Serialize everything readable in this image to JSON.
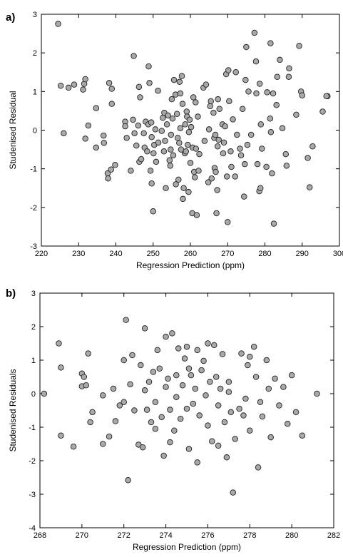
{
  "chart_data": [
    {
      "type": "scatter",
      "panel_label": "a)",
      "xlabel": "Regression Prediction (ppm)",
      "ylabel": "Studenised Residual",
      "xlim": [
        220,
        300
      ],
      "ylim": [
        -3,
        3
      ],
      "xticks": [
        220,
        230,
        240,
        250,
        260,
        270,
        280,
        290,
        300
      ],
      "yticks": [
        -3,
        -2,
        -1,
        0,
        1,
        2,
        3
      ],
      "grid": false,
      "marker_color": "#a9a9a9",
      "points": [
        [
          224.5,
          2.75
        ],
        [
          225.2,
          1.15
        ],
        [
          226.0,
          -0.08
        ],
        [
          227.3,
          1.1
        ],
        [
          228.8,
          1.18
        ],
        [
          231.2,
          1.05
        ],
        [
          231.5,
          1.2
        ],
        [
          231.8,
          1.32
        ],
        [
          231.8,
          -0.22
        ],
        [
          232.6,
          0.12
        ],
        [
          234.7,
          -0.45
        ],
        [
          234.7,
          0.57
        ],
        [
          236.7,
          -0.14
        ],
        [
          236.8,
          -0.33
        ],
        [
          237.8,
          -1.12
        ],
        [
          237.9,
          -1.25
        ],
        [
          238.7,
          -1.02
        ],
        [
          238.2,
          1.22
        ],
        [
          238.9,
          1.07
        ],
        [
          239.8,
          -0.9
        ],
        [
          238.9,
          0.68
        ],
        [
          242.5,
          0.22
        ],
        [
          242.5,
          0.1
        ],
        [
          242.9,
          -0.2
        ],
        [
          244.0,
          -1.05
        ],
        [
          244.8,
          1.92
        ],
        [
          244.6,
          0.27
        ],
        [
          245.0,
          -0.08
        ],
        [
          245.5,
          -0.4
        ],
        [
          246.0,
          0.12
        ],
        [
          246.2,
          1.12
        ],
        [
          246.3,
          -0.82
        ],
        [
          246.8,
          -0.75
        ],
        [
          246.5,
          0.85
        ],
        [
          247.5,
          -0.08
        ],
        [
          247.7,
          -0.45
        ],
        [
          248.0,
          0.22
        ],
        [
          248.4,
          -0.55
        ],
        [
          248.7,
          0.15
        ],
        [
          248.8,
          1.65
        ],
        [
          249.3,
          -1.05
        ],
        [
          249.6,
          -0.18
        ],
        [
          249.5,
          0.2
        ],
        [
          249.0,
          1.22
        ],
        [
          249.6,
          -1.38
        ],
        [
          250.1,
          -0.6
        ],
        [
          250.0,
          -2.1
        ],
        [
          250.3,
          -0.38
        ],
        [
          250.6,
          0.02
        ],
        [
          250.8,
          -0.82
        ],
        [
          251.4,
          -0.32
        ],
        [
          251.3,
          1.02
        ],
        [
          252.3,
          -0.02
        ],
        [
          252.6,
          0.32
        ],
        [
          253.0,
          0.45
        ],
        [
          252.9,
          -0.55
        ],
        [
          253.2,
          -0.28
        ],
        [
          253.7,
          0.15
        ],
        [
          253.4,
          -1.5
        ],
        [
          254.0,
          0.38
        ],
        [
          254.4,
          -0.78
        ],
        [
          254.6,
          -0.92
        ],
        [
          254.7,
          -0.5
        ],
        [
          254.8,
          -0.12
        ],
        [
          255.0,
          0.8
        ],
        [
          255.2,
          0.3
        ],
        [
          255.4,
          -0.65
        ],
        [
          255.6,
          1.3
        ],
        [
          256.0,
          0.92
        ],
        [
          256.1,
          -1.4
        ],
        [
          256.4,
          0.42
        ],
        [
          256.6,
          -0.2
        ],
        [
          256.8,
          -1.28
        ],
        [
          257.0,
          -0.33
        ],
        [
          257.1,
          1.25
        ],
        [
          257.3,
          0.95
        ],
        [
          257.3,
          0.05
        ],
        [
          257.5,
          -0.5
        ],
        [
          257.7,
          1.4
        ],
        [
          257.9,
          0.68
        ],
        [
          258.0,
          -1.78
        ],
        [
          258.2,
          -1.5
        ],
        [
          258.5,
          -0.6
        ],
        [
          258.6,
          0.15
        ],
        [
          258.8,
          -0.55
        ],
        [
          259.0,
          0.48
        ],
        [
          259.1,
          0.35
        ],
        [
          259.3,
          -0.38
        ],
        [
          259.5,
          -1.6
        ],
        [
          259.6,
          -0.05
        ],
        [
          259.8,
          0.27
        ],
        [
          260.0,
          -0.85
        ],
        [
          260.2,
          0.08
        ],
        [
          260.5,
          -2.15
        ],
        [
          260.6,
          -0.45
        ],
        [
          260.8,
          0.85
        ],
        [
          261.0,
          -1.08
        ],
        [
          261.2,
          -1.22
        ],
        [
          261.4,
          0.72
        ],
        [
          261.5,
          -0.48
        ],
        [
          261.7,
          -2.2
        ],
        [
          262.0,
          0.35
        ],
        [
          262.2,
          -1.05
        ],
        [
          262.4,
          -0.62
        ],
        [
          263.5,
          1.1
        ],
        [
          263.8,
          -0.28
        ],
        [
          264.2,
          1.18
        ],
        [
          264.8,
          -1.35
        ],
        [
          265.0,
          0.02
        ],
        [
          265.3,
          0.62
        ],
        [
          265.5,
          0.75
        ],
        [
          265.7,
          -1.25
        ],
        [
          266.2,
          0.45
        ],
        [
          266.4,
          -0.2
        ],
        [
          266.5,
          -0.98
        ],
        [
          266.7,
          -0.12
        ],
        [
          266.8,
          -1.08
        ],
        [
          267.0,
          -2.15
        ],
        [
          267.2,
          -1.55
        ],
        [
          267.3,
          -0.42
        ],
        [
          267.4,
          0.8
        ],
        [
          267.6,
          -0.25
        ],
        [
          267.8,
          0.55
        ],
        [
          268.6,
          0.15
        ],
        [
          268.8,
          -0.6
        ],
        [
          269.0,
          -0.32
        ],
        [
          269.3,
          0.1
        ],
        [
          269.6,
          1.45
        ],
        [
          269.8,
          -1.2
        ],
        [
          270.0,
          -2.38
        ],
        [
          270.2,
          1.55
        ],
        [
          270.4,
          0.75
        ],
        [
          270.8,
          -0.55
        ],
        [
          271.0,
          -0.95
        ],
        [
          271.4,
          0.28
        ],
        [
          272.0,
          -1.2
        ],
        [
          272.2,
          1.5
        ],
        [
          272.5,
          -0.12
        ],
        [
          273.3,
          -0.48
        ],
        [
          273.6,
          -0.65
        ],
        [
          274.0,
          0.55
        ],
        [
          274.4,
          -1.72
        ],
        [
          274.6,
          -0.88
        ],
        [
          274.8,
          1.3
        ],
        [
          275.0,
          2.15
        ],
        [
          275.3,
          -0.38
        ],
        [
          275.6,
          1.0
        ],
        [
          276.3,
          -0.12
        ],
        [
          277.2,
          2.52
        ],
        [
          277.6,
          1.78
        ],
        [
          277.7,
          0.95
        ],
        [
          278.0,
          -0.88
        ],
        [
          278.5,
          -1.58
        ],
        [
          278.6,
          1.2
        ],
        [
          278.8,
          -1.5
        ],
        [
          278.9,
          0.15
        ],
        [
          279.2,
          -0.48
        ],
        [
          280.4,
          -0.95
        ],
        [
          280.6,
          0.98
        ],
        [
          281.4,
          0.3
        ],
        [
          281.5,
          2.25
        ],
        [
          281.6,
          -0.05
        ],
        [
          281.9,
          -1.12
        ],
        [
          282.2,
          0.95
        ],
        [
          282.4,
          -2.42
        ],
        [
          283.1,
          0.65
        ],
        [
          283.3,
          1.38
        ],
        [
          284.0,
          1.82
        ],
        [
          284.7,
          0.05
        ],
        [
          286.4,
          1.38
        ],
        [
          285.6,
          -0.62
        ],
        [
          285.8,
          -0.92
        ],
        [
          286.5,
          1.6
        ],
        [
          288.4,
          0.4
        ],
        [
          289.2,
          2.18
        ],
        [
          289.7,
          1.0
        ],
        [
          290.0,
          0.9
        ],
        [
          291.5,
          -0.72
        ],
        [
          292.0,
          -1.48
        ],
        [
          292.8,
          -0.42
        ],
        [
          295.5,
          0.48
        ],
        [
          296.8,
          0.88
        ],
        [
          296.5,
          0.88
        ]
      ]
    },
    {
      "type": "scatter",
      "panel_label": "b)",
      "xlabel": "Regression Prediction (ppm)",
      "ylabel": "Studenised Residuals",
      "xlim": [
        268,
        282
      ],
      "ylim": [
        -4,
        3
      ],
      "xticks": [
        268,
        270,
        272,
        274,
        276,
        278,
        280,
        282
      ],
      "yticks": [
        -4,
        -3,
        -2,
        -1,
        0,
        1,
        2,
        3
      ],
      "grid": false,
      "marker_color": "#a9a9a9",
      "points": [
        [
          268.2,
          0.0
        ],
        [
          268.9,
          1.5
        ],
        [
          269.0,
          0.78
        ],
        [
          269.0,
          -1.25
        ],
        [
          269.6,
          -1.58
        ],
        [
          270.0,
          0.6
        ],
        [
          270.1,
          0.5
        ],
        [
          270.0,
          0.22
        ],
        [
          270.2,
          0.25
        ],
        [
          270.3,
          1.2
        ],
        [
          270.4,
          -0.85
        ],
        [
          270.5,
          -0.55
        ],
        [
          271.0,
          -1.5
        ],
        [
          271.0,
          -0.05
        ],
        [
          271.3,
          -1.28
        ],
        [
          271.5,
          0.15
        ],
        [
          271.6,
          -0.82
        ],
        [
          271.8,
          -0.35
        ],
        [
          272.0,
          -0.25
        ],
        [
          272.0,
          1.0
        ],
        [
          272.3,
          0.28
        ],
        [
          272.1,
          2.2
        ],
        [
          272.2,
          -2.58
        ],
        [
          272.4,
          1.15
        ],
        [
          272.5,
          -0.5
        ],
        [
          272.7,
          -1.52
        ],
        [
          272.8,
          0.85
        ],
        [
          272.9,
          -1.6
        ],
        [
          273.0,
          0.1
        ],
        [
          273.0,
          1.95
        ],
        [
          273.1,
          -0.48
        ],
        [
          273.2,
          0.35
        ],
        [
          273.3,
          -0.85
        ],
        [
          273.4,
          0.65
        ],
        [
          273.5,
          -1.05
        ],
        [
          273.5,
          -0.25
        ],
        [
          273.6,
          1.3
        ],
        [
          273.7,
          0.75
        ],
        [
          273.8,
          -0.7
        ],
        [
          273.9,
          -1.85
        ],
        [
          274.0,
          0.2
        ],
        [
          274.0,
          1.7
        ],
        [
          274.1,
          0.45
        ],
        [
          274.2,
          -0.48
        ],
        [
          274.2,
          -1.45
        ],
        [
          274.3,
          1.8
        ],
        [
          274.4,
          -1.1
        ],
        [
          274.5,
          0.55
        ],
        [
          274.5,
          -0.1
        ],
        [
          274.6,
          1.35
        ],
        [
          274.7,
          -0.75
        ],
        [
          274.8,
          0.25
        ],
        [
          274.9,
          1.05
        ],
        [
          275.0,
          -0.45
        ],
        [
          275.0,
          1.4
        ],
        [
          275.1,
          0.75
        ],
        [
          275.1,
          -1.65
        ],
        [
          275.2,
          0.55
        ],
        [
          275.3,
          -0.3
        ],
        [
          275.4,
          0.15
        ],
        [
          275.5,
          1.3
        ],
        [
          275.5,
          -2.05
        ],
        [
          275.6,
          -0.65
        ],
        [
          275.7,
          0.7
        ],
        [
          275.8,
          0.98
        ],
        [
          275.9,
          -0.05
        ],
        [
          276.0,
          1.5
        ],
        [
          276.0,
          -0.95
        ],
        [
          276.1,
          0.35
        ],
        [
          276.2,
          -1.42
        ],
        [
          276.3,
          1.45
        ],
        [
          276.4,
          0.5
        ],
        [
          276.5,
          -0.35
        ],
        [
          276.5,
          -1.55
        ],
        [
          276.6,
          0.15
        ],
        [
          276.7,
          1.18
        ],
        [
          276.8,
          -0.85
        ],
        [
          276.9,
          -1.9
        ],
        [
          277.0,
          0.35
        ],
        [
          277.0,
          0.05
        ],
        [
          277.1,
          -0.55
        ],
        [
          277.2,
          -2.95
        ],
        [
          277.3,
          -1.35
        ],
        [
          277.5,
          -0.45
        ],
        [
          277.6,
          1.2
        ],
        [
          277.7,
          -0.65
        ],
        [
          277.8,
          -0.15
        ],
        [
          277.9,
          0.85
        ],
        [
          278.0,
          -1.1
        ],
        [
          278.0,
          1.1
        ],
        [
          278.2,
          1.4
        ],
        [
          278.3,
          0.5
        ],
        [
          278.4,
          -2.2
        ],
        [
          278.5,
          -0.25
        ],
        [
          278.6,
          -0.68
        ],
        [
          278.8,
          1.0
        ],
        [
          278.9,
          0.15
        ],
        [
          279.0,
          -1.3
        ],
        [
          279.2,
          0.45
        ],
        [
          279.4,
          -0.35
        ],
        [
          279.6,
          0.2
        ],
        [
          279.8,
          -0.9
        ],
        [
          280.0,
          0.55
        ],
        [
          280.2,
          -0.55
        ],
        [
          280.5,
          -1.25
        ],
        [
          281.2,
          0.0
        ]
      ]
    }
  ]
}
